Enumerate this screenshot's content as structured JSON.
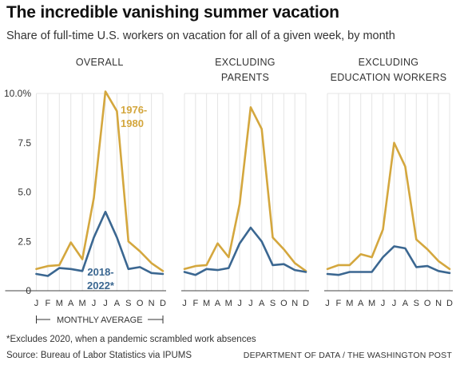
{
  "title": "The incredible vanishing summer vacation",
  "subtitle": "Share of full-time U.S. workers on vacation for all of a given week, by month",
  "footnote": "*Excludes 2020, when a pandemic scrambled work absences",
  "source": "Source: Bureau of Labor Statistics via IPUMS",
  "credit": "DEPARTMENT OF DATA / THE WASHINGTON POST",
  "axis_note": "MONTHLY AVERAGE",
  "colors": {
    "series_1976": "#D4A73E",
    "series_2018": "#3B6791",
    "grid": "#e4e4e4"
  },
  "chart_data": [
    {
      "type": "line",
      "panel_title": [
        "OVERALL"
      ],
      "categories": [
        "J",
        "F",
        "M",
        "A",
        "M",
        "J",
        "J",
        "A",
        "S",
        "O",
        "N",
        "D"
      ],
      "y_ticks": [
        "10.0%",
        "7.5",
        "5.0",
        "2.5",
        "0"
      ],
      "ylim": [
        0,
        10
      ],
      "grid": true,
      "series": [
        {
          "name": "1976-1980",
          "label_lines": [
            "1976-",
            "1980"
          ],
          "values": [
            1.1,
            1.25,
            1.3,
            2.45,
            1.6,
            4.7,
            10.1,
            9.1,
            2.5,
            2.0,
            1.4,
            1.0
          ]
        },
        {
          "name": "2018-2022*",
          "label_lines": [
            "2018-",
            "2022*"
          ],
          "values": [
            0.85,
            0.75,
            1.15,
            1.1,
            1.0,
            2.7,
            4.0,
            2.7,
            1.1,
            1.2,
            0.9,
            0.85
          ]
        }
      ]
    },
    {
      "type": "line",
      "panel_title": [
        "EXCLUDING",
        "PARENTS"
      ],
      "categories": [
        "J",
        "F",
        "M",
        "A",
        "M",
        "J",
        "J",
        "A",
        "S",
        "O",
        "N",
        "D"
      ],
      "ylim": [
        0,
        10
      ],
      "grid": true,
      "series": [
        {
          "name": "1976-1980",
          "values": [
            1.1,
            1.25,
            1.3,
            2.4,
            1.7,
            4.4,
            9.3,
            8.2,
            2.7,
            2.1,
            1.4,
            1.0
          ]
        },
        {
          "name": "2018-2022*",
          "values": [
            0.95,
            0.8,
            1.1,
            1.05,
            1.15,
            2.4,
            3.2,
            2.5,
            1.3,
            1.35,
            1.05,
            0.95
          ]
        }
      ]
    },
    {
      "type": "line",
      "panel_title": [
        "EXCLUDING",
        "EDUCATION WORKERS"
      ],
      "categories": [
        "J",
        "F",
        "M",
        "A",
        "M",
        "J",
        "J",
        "A",
        "S",
        "O",
        "N",
        "D"
      ],
      "ylim": [
        0,
        10
      ],
      "grid": true,
      "series": [
        {
          "name": "1976-1980",
          "values": [
            1.1,
            1.3,
            1.3,
            1.85,
            1.7,
            3.1,
            7.5,
            6.3,
            2.6,
            2.1,
            1.5,
            1.1
          ]
        },
        {
          "name": "2018-2022*",
          "values": [
            0.85,
            0.8,
            0.95,
            0.95,
            0.95,
            1.7,
            2.25,
            2.15,
            1.2,
            1.25,
            1.0,
            0.9
          ]
        }
      ]
    }
  ]
}
